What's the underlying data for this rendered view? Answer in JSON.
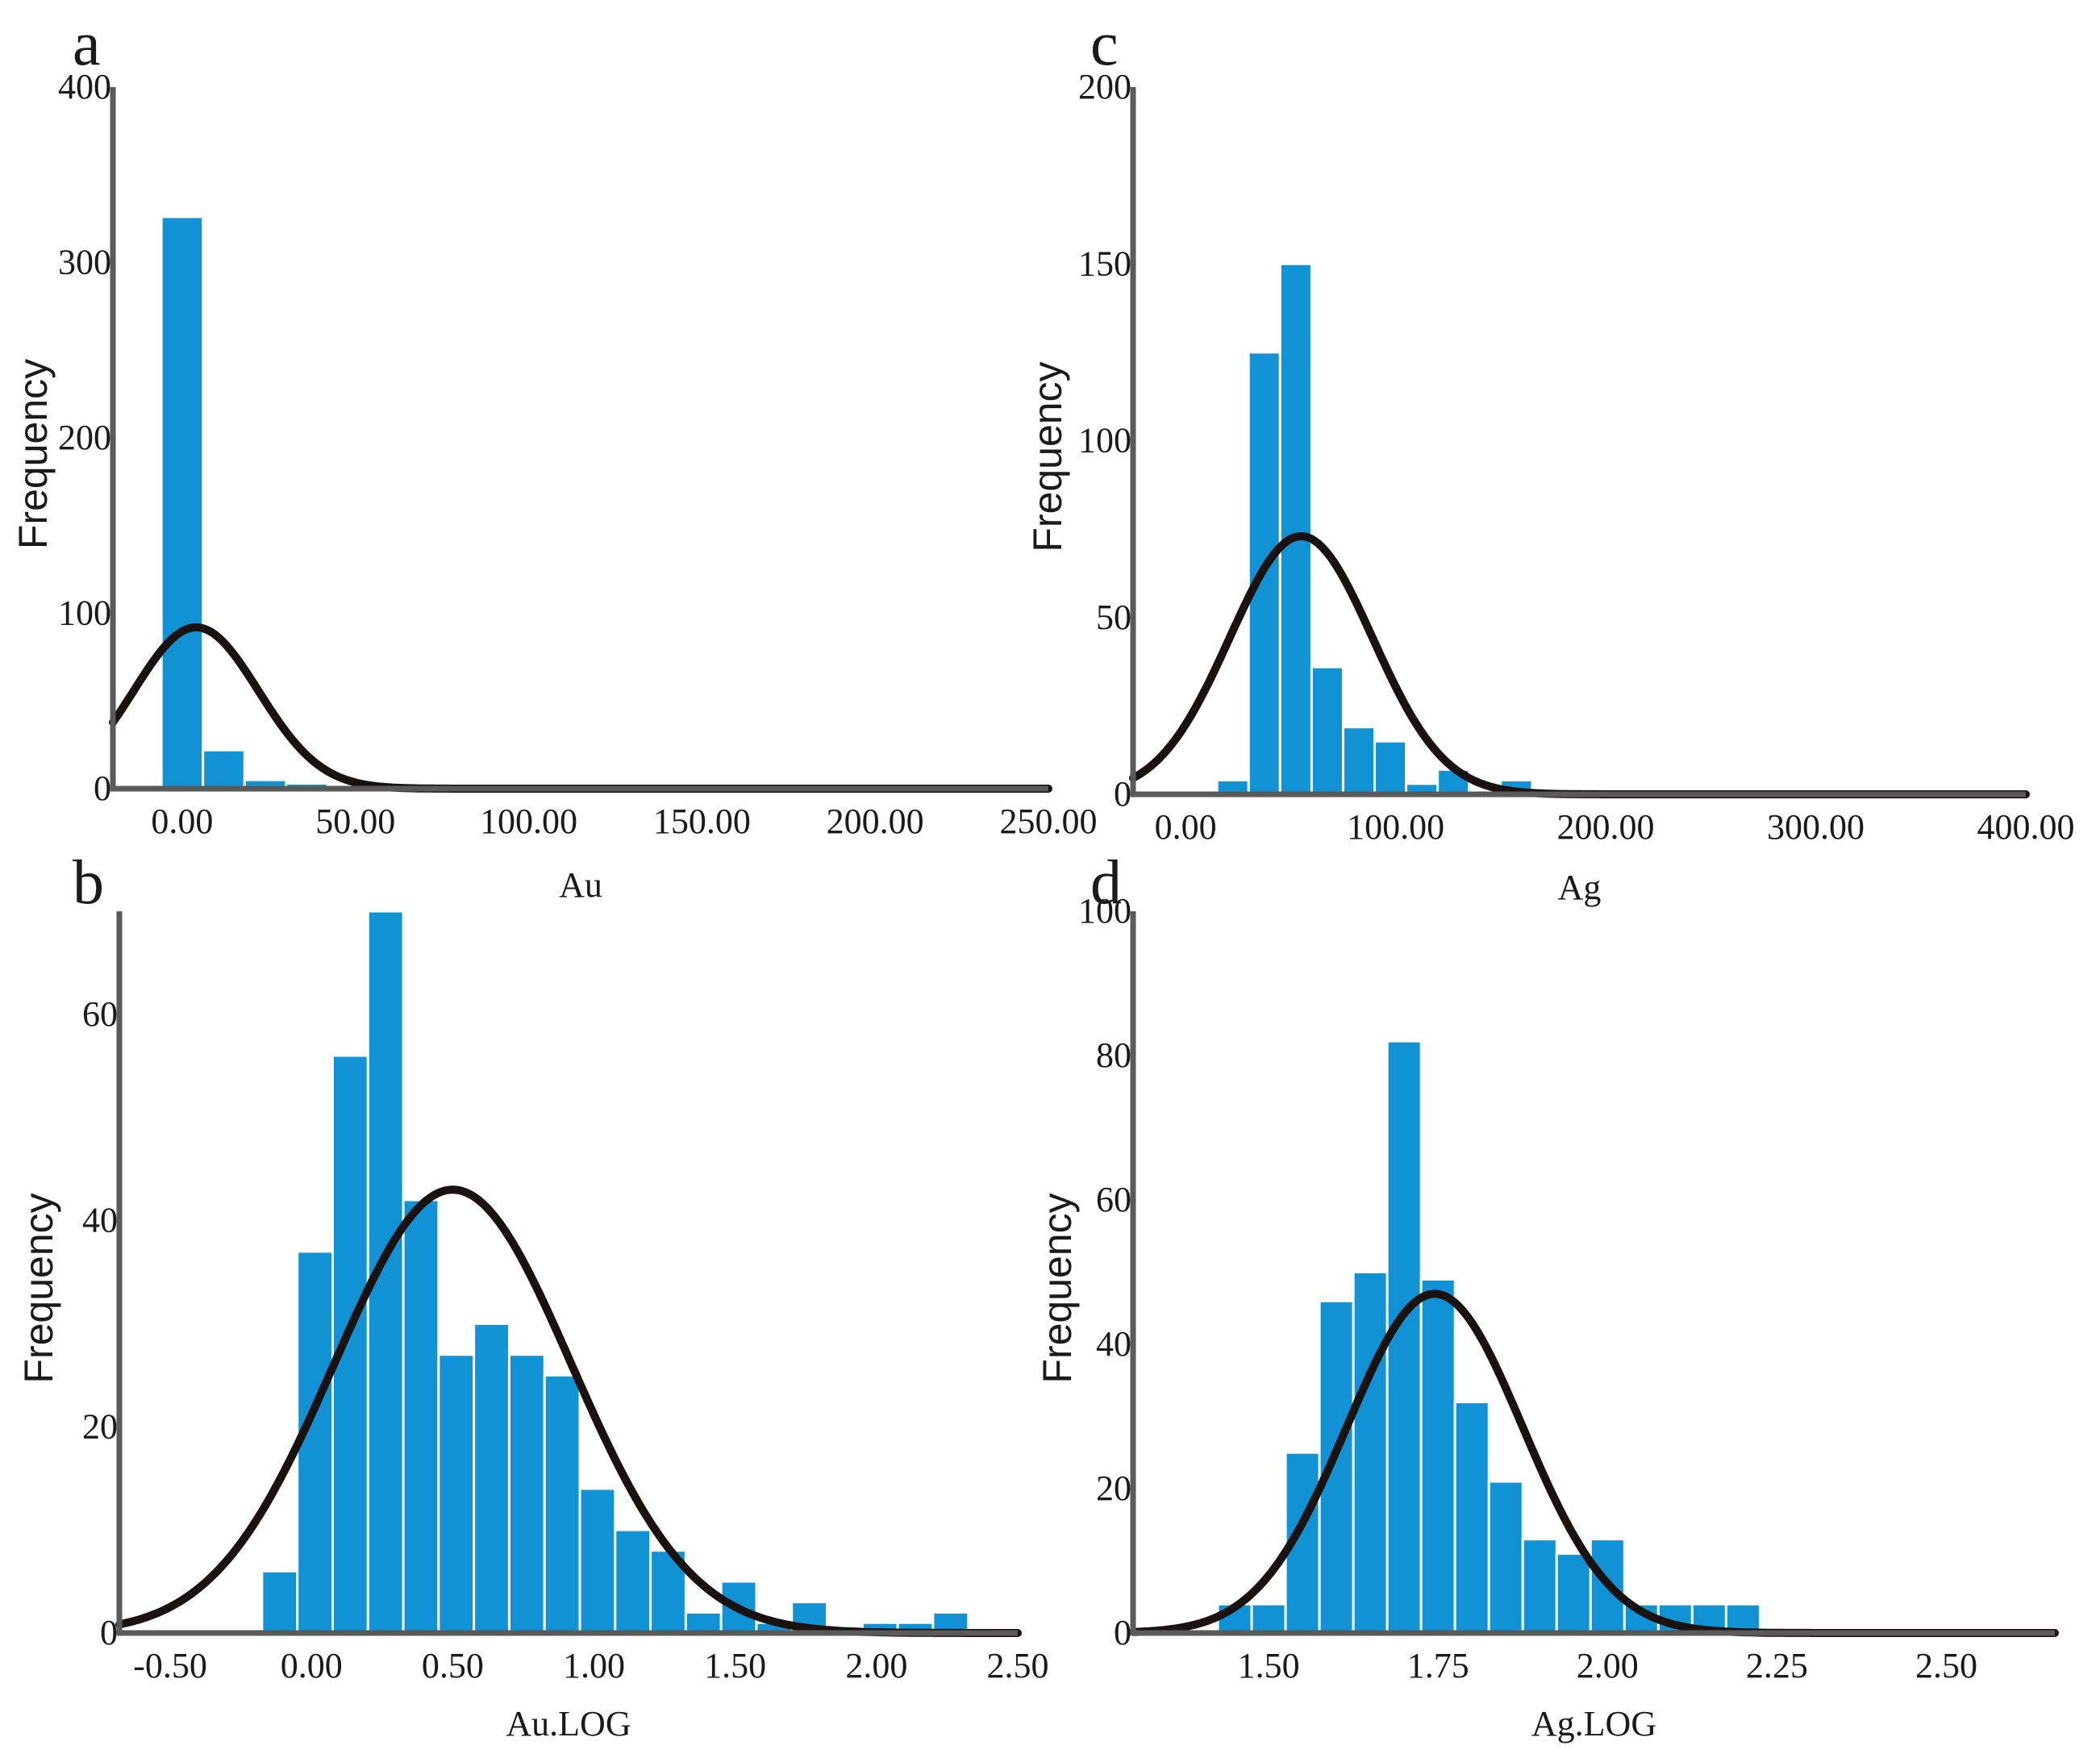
{
  "colors": {
    "bar": "#1192d4",
    "curve": "#1a1210",
    "axis": "#5a5a5a"
  },
  "chart_data": [
    {
      "panel": "a",
      "type": "bar",
      "title": "",
      "xlabel": "Au",
      "ylabel": "Frequency",
      "xlim": [
        -20,
        250
      ],
      "ylim": [
        0,
        400
      ],
      "x_ticks": [
        0,
        50,
        100,
        150,
        200,
        250
      ],
      "x_tick_labels": [
        "0.00",
        "50.00",
        "100.00",
        "150.00",
        "200.00",
        "250.00"
      ],
      "y_ticks": [
        0,
        100,
        200,
        300,
        400
      ],
      "y_tick_labels": [
        "0",
        "100",
        "200",
        "300",
        "400"
      ],
      "bin_edges": [
        -6,
        6,
        18,
        30,
        42
      ],
      "values": [
        326,
        22,
        5,
        3
      ],
      "normal_curve": {
        "mean": 4,
        "sd": 18,
        "peak": 92
      }
    },
    {
      "panel": "b",
      "type": "bar",
      "title": "",
      "xlabel": "Au.LOG",
      "ylabel": "Frequency",
      "xlim": [
        -0.68,
        2.5
      ],
      "ylim": [
        0,
        70
      ],
      "x_ticks": [
        -0.5,
        0,
        0.5,
        1,
        1.5,
        2,
        2.5
      ],
      "x_tick_labels": [
        "-0.50",
        "0.00",
        "0.50",
        "1.00",
        "1.50",
        "2.00",
        "2.50"
      ],
      "y_ticks": [
        0,
        20,
        40,
        60
      ],
      "y_tick_labels": [
        "0",
        "20",
        "40",
        "60"
      ],
      "bin_edges": [
        -0.175,
        -0.05,
        0.075,
        0.2,
        0.325,
        0.45,
        0.575,
        0.7,
        0.825,
        0.95,
        1.075,
        1.2,
        1.325,
        1.45,
        1.575,
        1.7,
        1.825,
        1.95,
        2.075,
        2.2,
        2.325
      ],
      "values": [
        6,
        37,
        56,
        70,
        42,
        27,
        30,
        27,
        25,
        14,
        10,
        8,
        2,
        5,
        1,
        3,
        0,
        1,
        1,
        2
      ],
      "normal_curve": {
        "mean": 0.5,
        "sd": 0.42,
        "peak": 43
      }
    },
    {
      "panel": "c",
      "type": "bar",
      "title": "",
      "xlabel": "Ag",
      "ylabel": "Frequency",
      "xlim": [
        -25,
        400
      ],
      "ylim": [
        0,
        200
      ],
      "x_ticks": [
        0,
        100,
        200,
        300,
        400
      ],
      "x_tick_labels": [
        "0.00",
        "100.00",
        "200.00",
        "300.00",
        "400.00"
      ],
      "y_ticks": [
        0,
        50,
        100,
        150,
        200
      ],
      "y_tick_labels": [
        "0",
        "50",
        "100",
        "150",
        "200"
      ],
      "bin_edges": [
        15,
        30,
        45,
        60,
        75,
        90,
        105,
        120,
        135,
        150,
        165
      ],
      "values": [
        4,
        125,
        150,
        36,
        19,
        15,
        3,
        7,
        1,
        4
      ],
      "normal_curve": {
        "mean": 55,
        "sd": 34,
        "peak": 73
      }
    },
    {
      "panel": "d",
      "type": "bar",
      "title": "",
      "xlabel": "Ag.LOG",
      "ylabel": "Frequency",
      "xlim": [
        1.3,
        2.66
      ],
      "ylim": [
        0,
        100
      ],
      "x_ticks": [
        1.5,
        1.75,
        2,
        2.25,
        2.5
      ],
      "x_tick_labels": [
        "1.50",
        "1.75",
        "2.00",
        "2.25",
        "2.50"
      ],
      "y_ticks": [
        0,
        20,
        40,
        60,
        80,
        100
      ],
      "y_tick_labels": [
        "0",
        "20",
        "40",
        "60",
        "80",
        "100"
      ],
      "bin_edges": [
        1.425,
        1.475,
        1.525,
        1.575,
        1.625,
        1.675,
        1.725,
        1.775,
        1.825,
        1.875,
        1.925,
        1.975,
        2.025,
        2.075,
        2.125,
        2.175,
        2.225
      ],
      "values": [
        4,
        4,
        25,
        46,
        50,
        82,
        49,
        32,
        21,
        13,
        11,
        13,
        4,
        4,
        4,
        4
      ],
      "normal_curve": {
        "mean": 1.745,
        "sd": 0.13,
        "peak": 47
      }
    }
  ]
}
